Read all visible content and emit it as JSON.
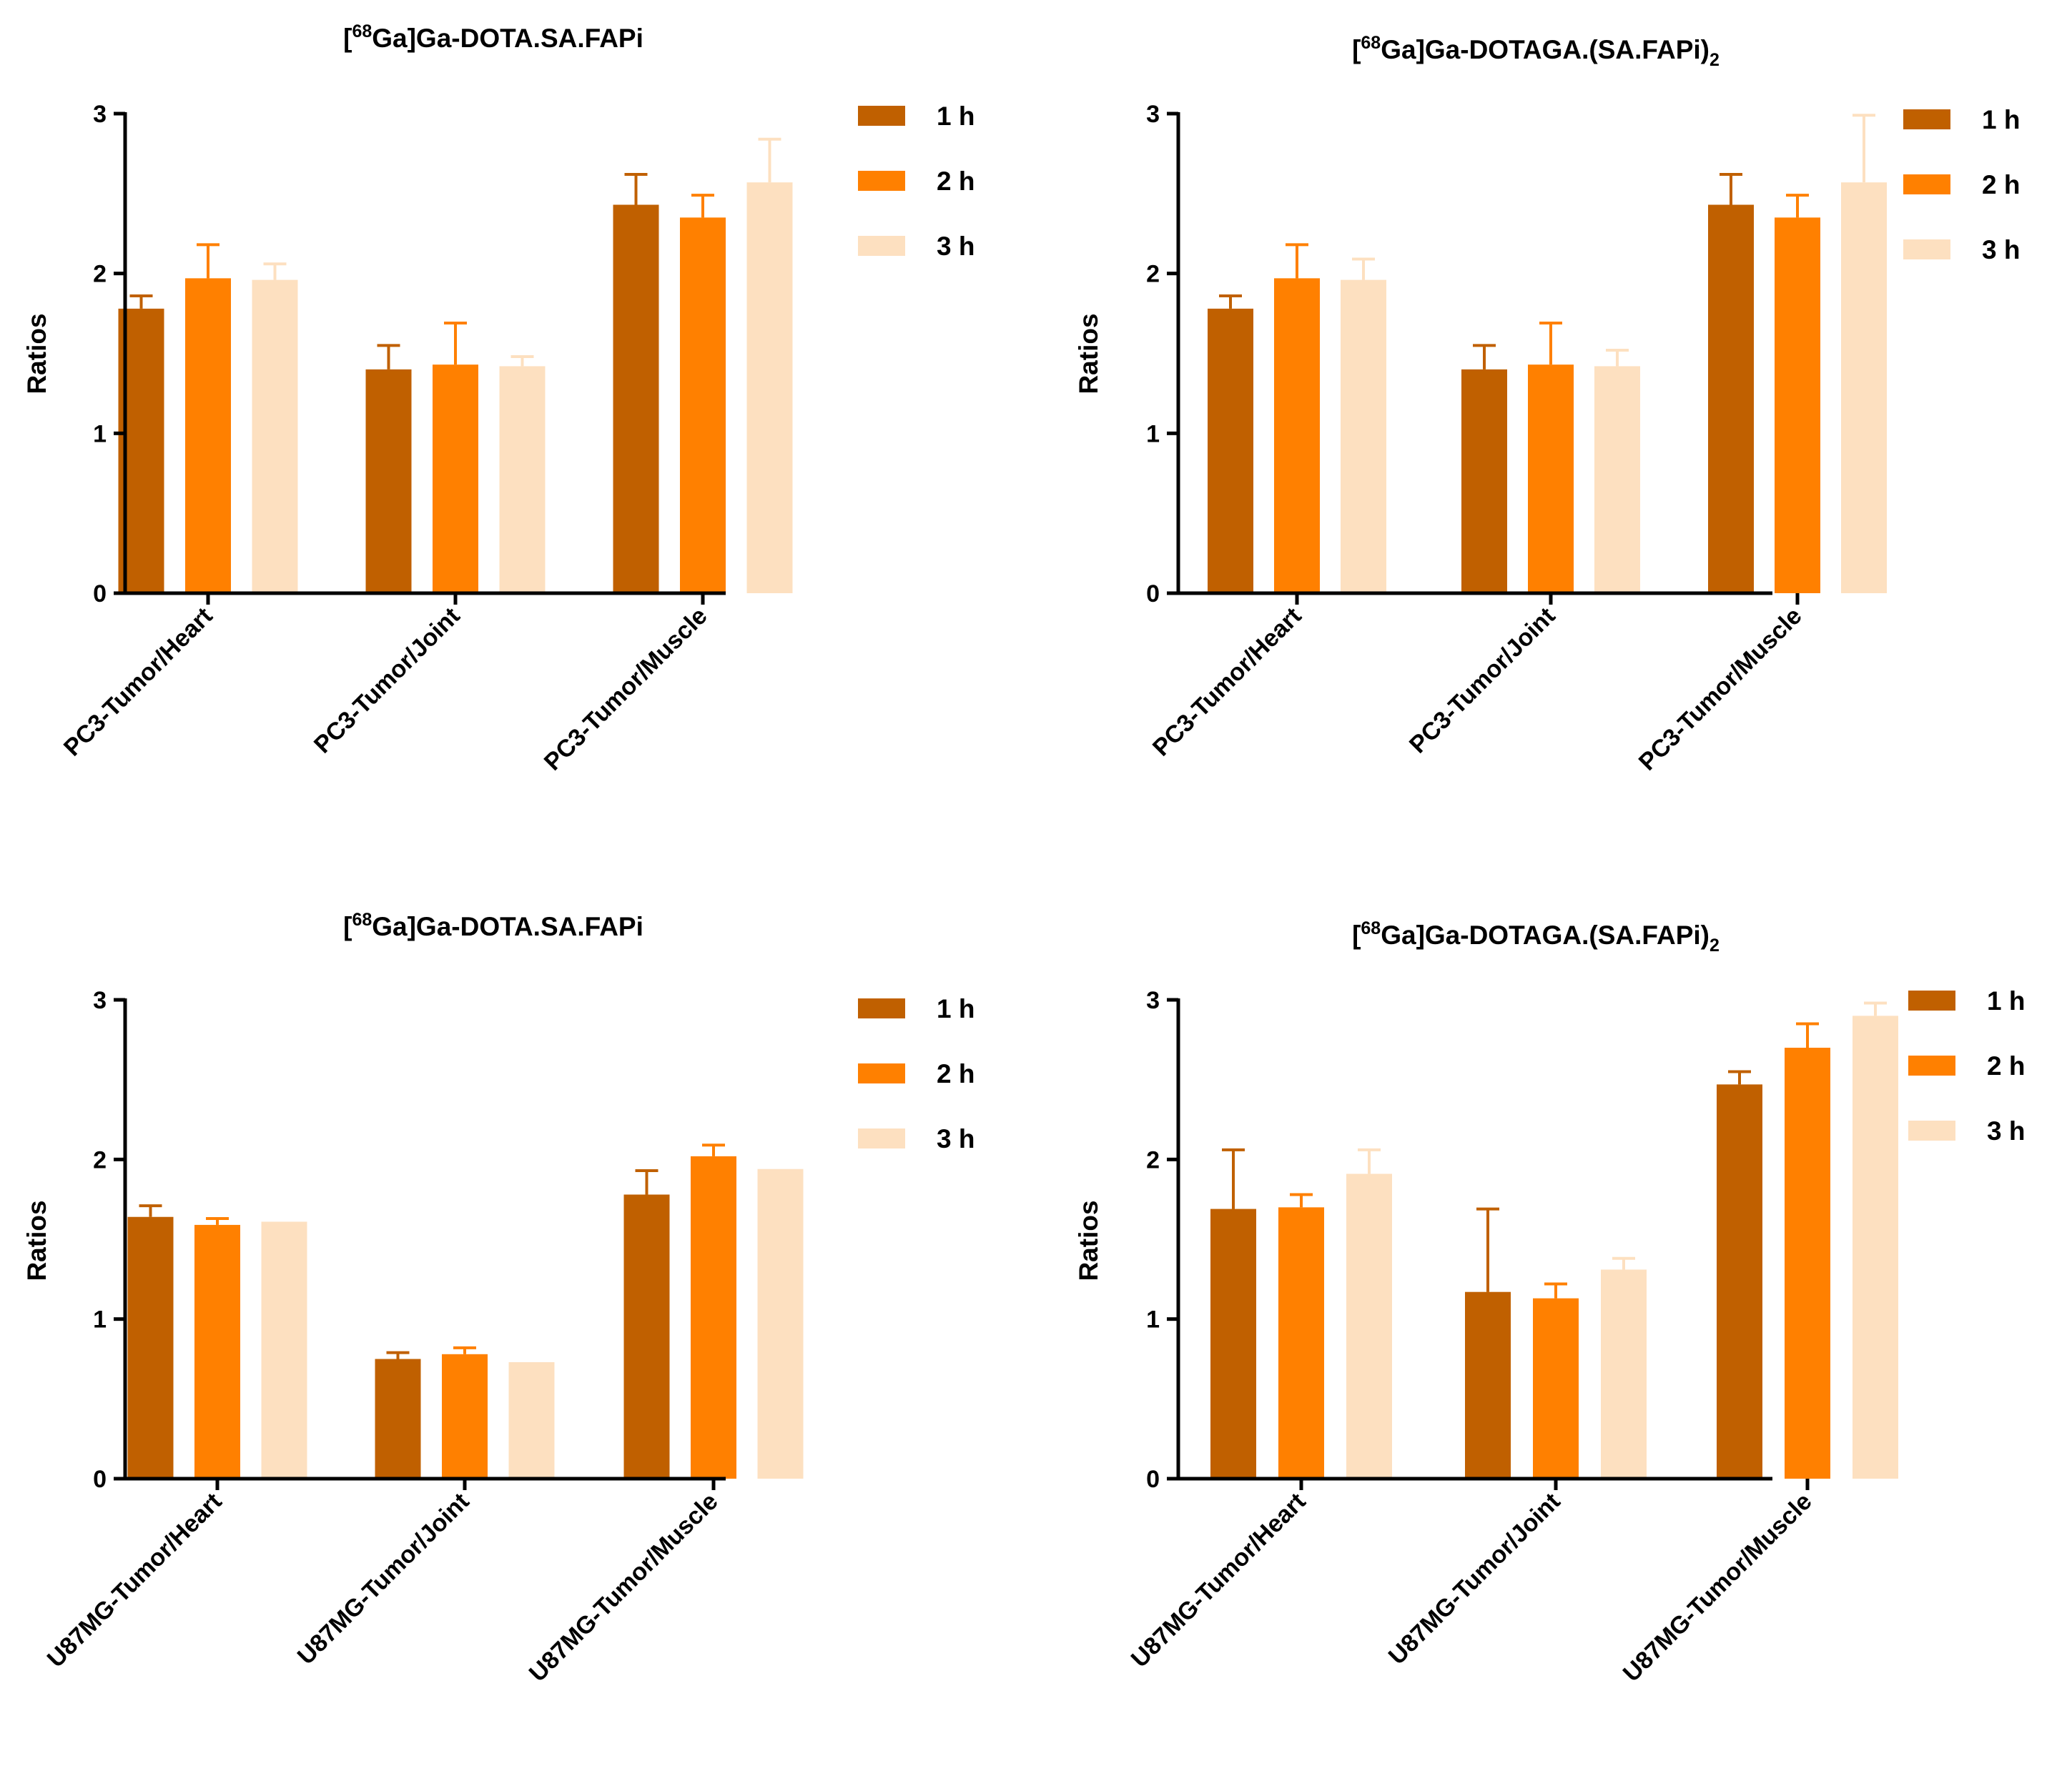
{
  "colors": {
    "1 h": "#c06000",
    "2 h": "#ff8000",
    "3 h": "#fde0c0",
    "axis": "#000000",
    "text": "#000000"
  },
  "chart_data": [
    {
      "type": "bar",
      "title": "[68Ga]Ga-DOTA.SA.FAPi",
      "title_parts": {
        "open": "[",
        "sup": "68",
        "main": "Ga]Ga-DOTA.SA.FAPi",
        "sub": ""
      },
      "ylabel": "Ratios",
      "ylim": [
        0,
        3
      ],
      "yticks": [
        "0",
        "1",
        "2",
        "3"
      ],
      "grid": false,
      "legend": "top-right",
      "categories": [
        "PC3-Tumor/Heart",
        "PC3-Tumor/Joint",
        "PC3-Tumor/Muscle"
      ],
      "series": [
        {
          "name": "1 h",
          "values": [
            1.78,
            1.4,
            2.43
          ],
          "errors": [
            0.08,
            0.15,
            0.19
          ]
        },
        {
          "name": "2 h",
          "values": [
            1.97,
            1.43,
            2.35
          ],
          "errors": [
            0.21,
            0.26,
            0.14
          ]
        },
        {
          "name": "3 h",
          "values": [
            1.96,
            1.42,
            2.57
          ],
          "errors": [
            0.1,
            0.06,
            0.27
          ]
        }
      ]
    },
    {
      "type": "bar",
      "title": "[68Ga]Ga-DOTAGA.(SA.FAPi)2",
      "title_parts": {
        "open": "[",
        "sup": "68",
        "main": "Ga]Ga-DOTAGA.(SA.FAPi)",
        "sub": "2"
      },
      "ylabel": "Ratios",
      "ylim": [
        0,
        3
      ],
      "yticks": [
        "0",
        "1",
        "2",
        "3"
      ],
      "grid": false,
      "legend": "top-right",
      "categories": [
        "PC3-Tumor/Heart",
        "PC3-Tumor/Joint",
        "PC3-Tumor/Muscle"
      ],
      "series": [
        {
          "name": "1 h",
          "values": [
            1.78,
            1.4,
            2.43
          ],
          "errors": [
            0.08,
            0.15,
            0.19
          ]
        },
        {
          "name": "2 h",
          "values": [
            1.97,
            1.43,
            2.35
          ],
          "errors": [
            0.21,
            0.26,
            0.14
          ]
        },
        {
          "name": "3 h",
          "values": [
            1.96,
            1.42,
            2.57
          ],
          "errors": [
            0.13,
            0.1,
            0.42
          ]
        }
      ]
    },
    {
      "type": "bar",
      "title": "[68Ga]Ga-DOTA.SA.FAPi",
      "title_parts": {
        "open": "[",
        "sup": "68",
        "main": "Ga]Ga-DOTA.SA.FAPi",
        "sub": ""
      },
      "ylabel": "Ratios",
      "ylim": [
        0,
        3
      ],
      "yticks": [
        "0",
        "1",
        "2",
        "3"
      ],
      "grid": false,
      "legend": "top-right",
      "categories": [
        "U87MG-Tumor/Heart",
        "U87MG-Tumor/Joint",
        "U87MG-Tumor/Muscle"
      ],
      "series": [
        {
          "name": "1 h",
          "values": [
            1.64,
            0.75,
            1.78
          ],
          "errors": [
            0.07,
            0.04,
            0.15
          ]
        },
        {
          "name": "2 h",
          "values": [
            1.59,
            0.78,
            2.02
          ],
          "errors": [
            0.04,
            0.04,
            0.07
          ]
        },
        {
          "name": "3 h",
          "values": [
            1.61,
            0.73,
            1.94
          ],
          "errors": [
            0,
            0,
            0
          ]
        }
      ]
    },
    {
      "type": "bar",
      "title": "[68Ga]Ga-DOTAGA.(SA.FAPi)2",
      "title_parts": {
        "open": "[",
        "sup": "68",
        "main": "Ga]Ga-DOTAGA.(SA.FAPi)",
        "sub": "2"
      },
      "ylabel": "Ratios",
      "ylim": [
        0,
        3
      ],
      "yticks": [
        "0",
        "1",
        "2",
        "3"
      ],
      "grid": false,
      "legend": "top-right",
      "categories": [
        "U87MG-Tumor/Heart",
        "U87MG-Tumor/Joint",
        "U87MG-Tumor/Muscle"
      ],
      "series": [
        {
          "name": "1 h",
          "values": [
            1.69,
            1.17,
            2.47
          ],
          "errors": [
            0.37,
            0.52,
            0.08
          ]
        },
        {
          "name": "2 h",
          "values": [
            1.7,
            1.13,
            2.7
          ],
          "errors": [
            0.08,
            0.09,
            0.15
          ]
        },
        {
          "name": "3 h",
          "values": [
            1.91,
            1.31,
            2.9
          ],
          "errors": [
            0.15,
            0.07,
            0.08
          ]
        }
      ]
    }
  ]
}
